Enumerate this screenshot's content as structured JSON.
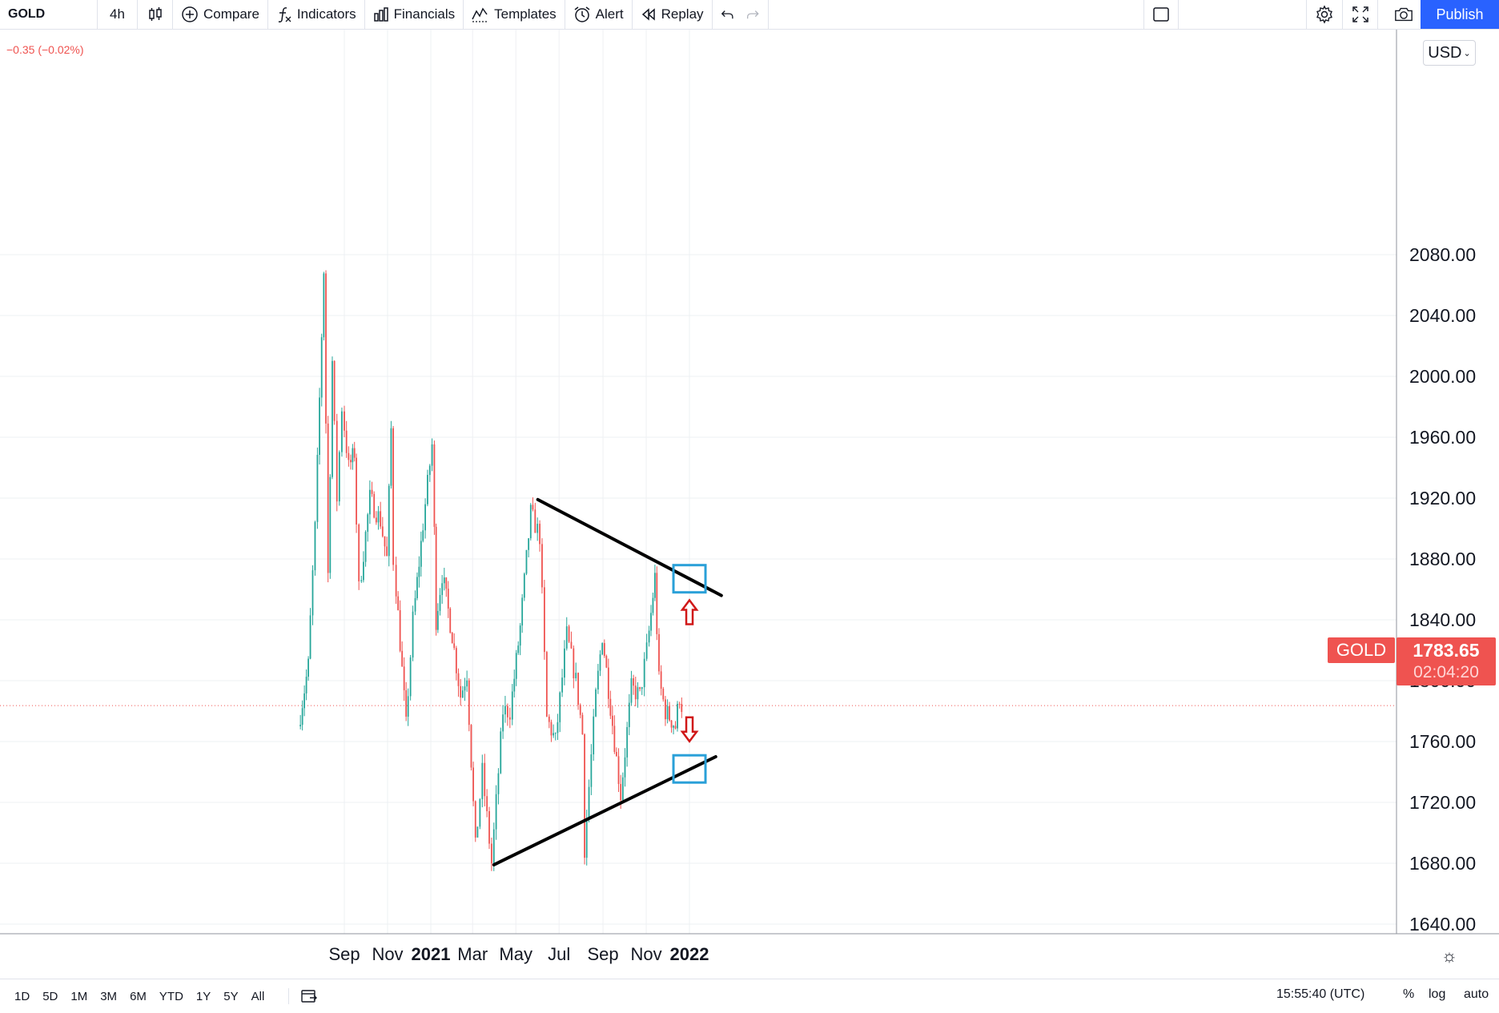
{
  "toolbar": {
    "symbol": "GOLD",
    "interval": "4h",
    "compare": "Compare",
    "indicators": "Indicators",
    "financials": "Financials",
    "templates": "Templates",
    "alert": "Alert",
    "replay": "Replay",
    "publish": "Publish"
  },
  "legend": {
    "change": "−0.35 (−0.02%)"
  },
  "currency": "USD",
  "price_axis": [
    "2080.00",
    "2040.00",
    "2000.00",
    "1960.00",
    "1920.00",
    "1880.00",
    "1840.00",
    "1800.00",
    "1760.00",
    "1720.00",
    "1680.00",
    "1640.00"
  ],
  "time_axis": [
    "Sep",
    "Nov",
    "2021",
    "Mar",
    "May",
    "Jul",
    "Sep",
    "Nov",
    "2022"
  ],
  "last_price": {
    "symbol": "GOLD",
    "price": "1783.65",
    "countdown": "02:04:20"
  },
  "bottom": {
    "ranges": [
      "1D",
      "5D",
      "1M",
      "3M",
      "6M",
      "YTD",
      "1Y",
      "5Y",
      "All"
    ],
    "clock": "15:55:40 (UTC)",
    "percent": "%",
    "log": "log",
    "auto": "auto"
  },
  "chart_data": {
    "type": "candlestick",
    "symbol": "GOLD",
    "interval": "4h",
    "ylim": [
      1640,
      2100
    ],
    "last": 1783.65,
    "pivots": [
      {
        "date": "2020-07-01",
        "price": 1770
      },
      {
        "date": "2020-07-15",
        "price": 1810
      },
      {
        "date": "2020-07-25",
        "price": 1900
      },
      {
        "date": "2020-08-06",
        "price": 2070
      },
      {
        "date": "2020-08-12",
        "price": 1870
      },
      {
        "date": "2020-08-18",
        "price": 2010
      },
      {
        "date": "2020-08-25",
        "price": 1920
      },
      {
        "date": "2020-09-01",
        "price": 1980
      },
      {
        "date": "2020-09-10",
        "price": 1940
      },
      {
        "date": "2020-09-18",
        "price": 1950
      },
      {
        "date": "2020-09-25",
        "price": 1860
      },
      {
        "date": "2020-10-10",
        "price": 1920
      },
      {
        "date": "2020-10-25",
        "price": 1905
      },
      {
        "date": "2020-11-03",
        "price": 1880
      },
      {
        "date": "2020-11-09",
        "price": 1965
      },
      {
        "date": "2020-11-13",
        "price": 1880
      },
      {
        "date": "2020-11-30",
        "price": 1770
      },
      {
        "date": "2020-12-10",
        "price": 1840
      },
      {
        "date": "2020-12-21",
        "price": 1890
      },
      {
        "date": "2021-01-06",
        "price": 1955
      },
      {
        "date": "2021-01-11",
        "price": 1840
      },
      {
        "date": "2021-01-20",
        "price": 1870
      },
      {
        "date": "2021-02-03",
        "price": 1830
      },
      {
        "date": "2021-02-15",
        "price": 1790
      },
      {
        "date": "2021-02-24",
        "price": 1805
      },
      {
        "date": "2021-03-08",
        "price": 1690
      },
      {
        "date": "2021-03-18",
        "price": 1740
      },
      {
        "date": "2021-03-31",
        "price": 1680
      },
      {
        "date": "2021-04-16",
        "price": 1780
      },
      {
        "date": "2021-04-26",
        "price": 1780
      },
      {
        "date": "2021-05-10",
        "price": 1835
      },
      {
        "date": "2021-05-25",
        "price": 1910
      },
      {
        "date": "2021-06-07",
        "price": 1895
      },
      {
        "date": "2021-06-17",
        "price": 1775
      },
      {
        "date": "2021-06-29",
        "price": 1760
      },
      {
        "date": "2021-07-15",
        "price": 1830
      },
      {
        "date": "2021-07-28",
        "price": 1800
      },
      {
        "date": "2021-08-06",
        "price": 1765
      },
      {
        "date": "2021-08-09",
        "price": 1690
      },
      {
        "date": "2021-08-25",
        "price": 1790
      },
      {
        "date": "2021-09-03",
        "price": 1830
      },
      {
        "date": "2021-09-20",
        "price": 1760
      },
      {
        "date": "2021-09-29",
        "price": 1725
      },
      {
        "date": "2021-10-14",
        "price": 1795
      },
      {
        "date": "2021-10-26",
        "price": 1790
      },
      {
        "date": "2021-11-05",
        "price": 1820
      },
      {
        "date": "2021-11-16",
        "price": 1868
      },
      {
        "date": "2021-11-22",
        "price": 1800
      },
      {
        "date": "2021-12-01",
        "price": 1780
      },
      {
        "date": "2021-12-15",
        "price": 1770
      },
      {
        "date": "2021-12-21",
        "price": 1790
      },
      {
        "date": "2021-12-24",
        "price": 1783.65
      }
    ],
    "trendlines": [
      {
        "from": {
          "date": "2021-06-01",
          "price": 1919
        },
        "to": {
          "date": "2022-02-15",
          "price": 1856
        }
      },
      {
        "from": {
          "date": "2021-03-31",
          "price": 1679
        },
        "to": {
          "date": "2022-02-07",
          "price": 1750
        }
      }
    ],
    "annotations": [
      {
        "type": "box",
        "date": "2022-01-01",
        "price": 1867,
        "color": "#2aa0d8"
      },
      {
        "type": "arrow-up",
        "date": "2022-01-01",
        "price": 1845,
        "color": "#d01818"
      },
      {
        "type": "box",
        "date": "2022-01-01",
        "price": 1742,
        "color": "#2aa0d8"
      },
      {
        "type": "arrow-down",
        "date": "2022-01-01",
        "price": 1768,
        "color": "#d01818"
      }
    ],
    "colors": {
      "up": "#26a69a",
      "down": "#ef5350",
      "trendline": "#000000"
    }
  }
}
